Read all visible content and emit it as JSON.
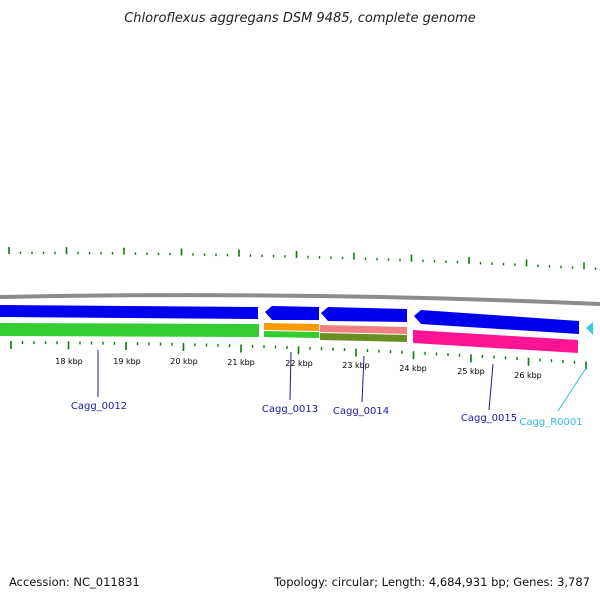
{
  "title": "Chloroflexus aggregans DSM 9485, complete genome",
  "footer": {
    "accession": "Accession: NC_011831",
    "summary": "Topology: circular; Length: 4,684,931 bp; Genes: 3,787"
  },
  "colors": {
    "backbone": "#8c8c8c",
    "cds": "#0000ee",
    "rna": "#33ccee",
    "green_track": "#33cc33",
    "orange_track": "#ff9900",
    "salmon_track": "#f08080",
    "olive_track": "#6b8e23",
    "magenta_track": "#ff1493",
    "ticks": "#117711",
    "label_cds": "#1a1aa6",
    "label_rna": "#33bbdd"
  },
  "kbp_labels": [
    "18 kbp",
    "19 kbp",
    "20 kbp",
    "21 kbp",
    "22 kbp",
    "23 kbp",
    "24 kbp",
    "25 kbp",
    "26 kbp"
  ],
  "genes": [
    {
      "name": "Cagg_0012",
      "kind": "CDS",
      "strand": "forward"
    },
    {
      "name": "Cagg_0013",
      "kind": "CDS",
      "strand": "reverse"
    },
    {
      "name": "Cagg_0014",
      "kind": "CDS",
      "strand": "reverse"
    },
    {
      "name": "Cagg_0015",
      "kind": "CDS",
      "strand": "reverse"
    },
    {
      "name": "Cagg_R0001",
      "kind": "rRNA",
      "strand": "reverse"
    }
  ]
}
